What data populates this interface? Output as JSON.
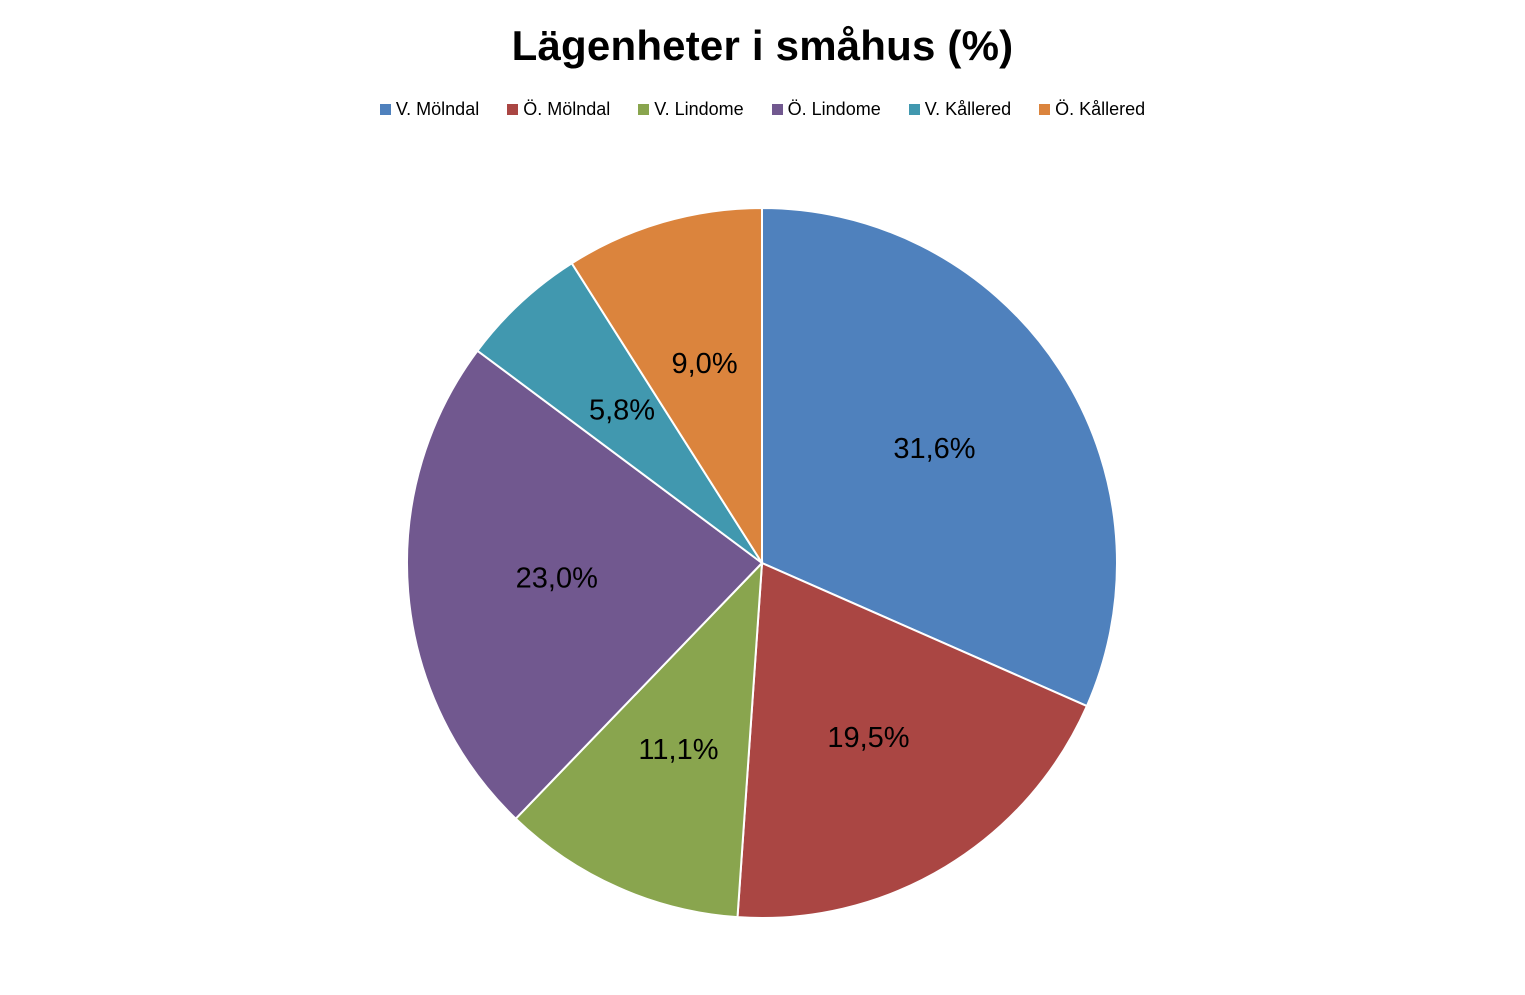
{
  "chart_data": {
    "type": "pie",
    "title": "Lägenheter i småhus (%)",
    "legend_position": "top",
    "unit": "%",
    "categories": [
      "V. Mölndal",
      "Ö. Mölndal",
      "V. Lindome",
      "Ö. Lindome",
      "V. Kållered",
      "Ö. Kållered"
    ],
    "values": [
      31.6,
      19.5,
      11.1,
      23.0,
      5.8,
      9.0
    ],
    "data_labels": [
      "31,6%",
      "19,5%",
      "11,1%",
      "23,0%",
      "5,8%",
      "9,0%"
    ],
    "colors": [
      "#4F81BD",
      "#AA4643",
      "#89A54E",
      "#71588F",
      "#4198AF",
      "#DB843D"
    ],
    "start": "12 o'clock, clockwise"
  }
}
